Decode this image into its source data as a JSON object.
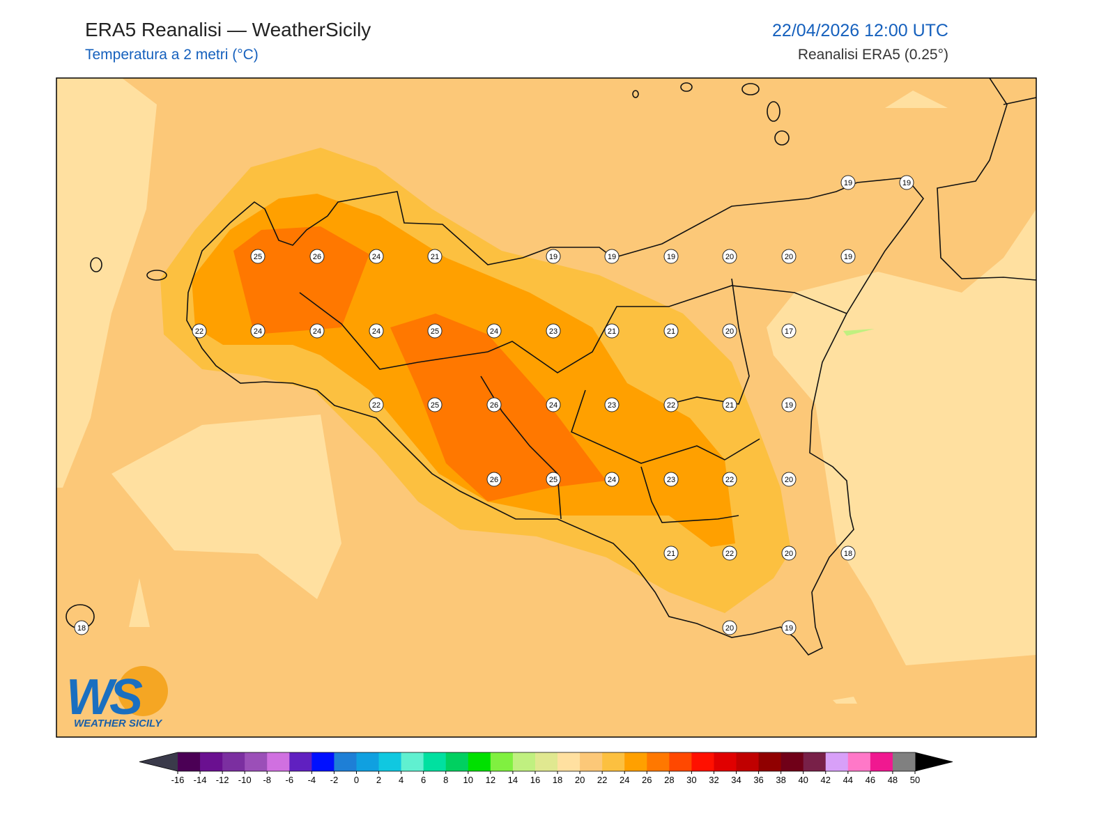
{
  "header": {
    "title": "ERA5 Reanalisi — WeatherSicily",
    "subtitle": "Temperatura a 2 metri (°C)",
    "datetime": "22/04/2026 12:00 UTC",
    "source": "Reanalisi ERA5 (0.25°)"
  },
  "stations": [
    19,
    19,
    25,
    26,
    24,
    21,
    19,
    19,
    19,
    20,
    20,
    19,
    22,
    24,
    24,
    24,
    25,
    24,
    23,
    21,
    21,
    20,
    17,
    22,
    25,
    26,
    24,
    23,
    22,
    21,
    19,
    26,
    25,
    24,
    23,
    22,
    20,
    21,
    22,
    20,
    18,
    18,
    20,
    19
  ],
  "colorbar": {
    "ticks": [
      -16,
      -14,
      -12,
      -10,
      -8,
      -6,
      -4,
      -2,
      0,
      2,
      4,
      6,
      8,
      10,
      12,
      14,
      16,
      18,
      20,
      22,
      24,
      26,
      28,
      30,
      32,
      34,
      36,
      38,
      40,
      42,
      44,
      46,
      48,
      50
    ],
    "colors": [
      "#4b0055",
      "#6a1090",
      "#7b2fa0",
      "#9b4fb8",
      "#d070e0",
      "#6020c0",
      "#0010ff",
      "#1e7fd6",
      "#10a0e0",
      "#10c8e0",
      "#60f0d0",
      "#00e0a0",
      "#00d060",
      "#00e000",
      "#80f040",
      "#c0f080",
      "#e0e890",
      "#ffe0a0",
      "#fcc878",
      "#fcc040",
      "#ffa000",
      "#ff7800",
      "#ff4800",
      "#ff1000",
      "#e00000",
      "#c00000",
      "#900000",
      "#700018",
      "#782048",
      "#d8a0f8",
      "#ff78c8",
      "#f01890",
      "#808080"
    ],
    "under_color": "#3a3a4a",
    "over_color": "#000000"
  },
  "logo": {
    "mark": "WS",
    "name": "WEATHER SICILY"
  }
}
